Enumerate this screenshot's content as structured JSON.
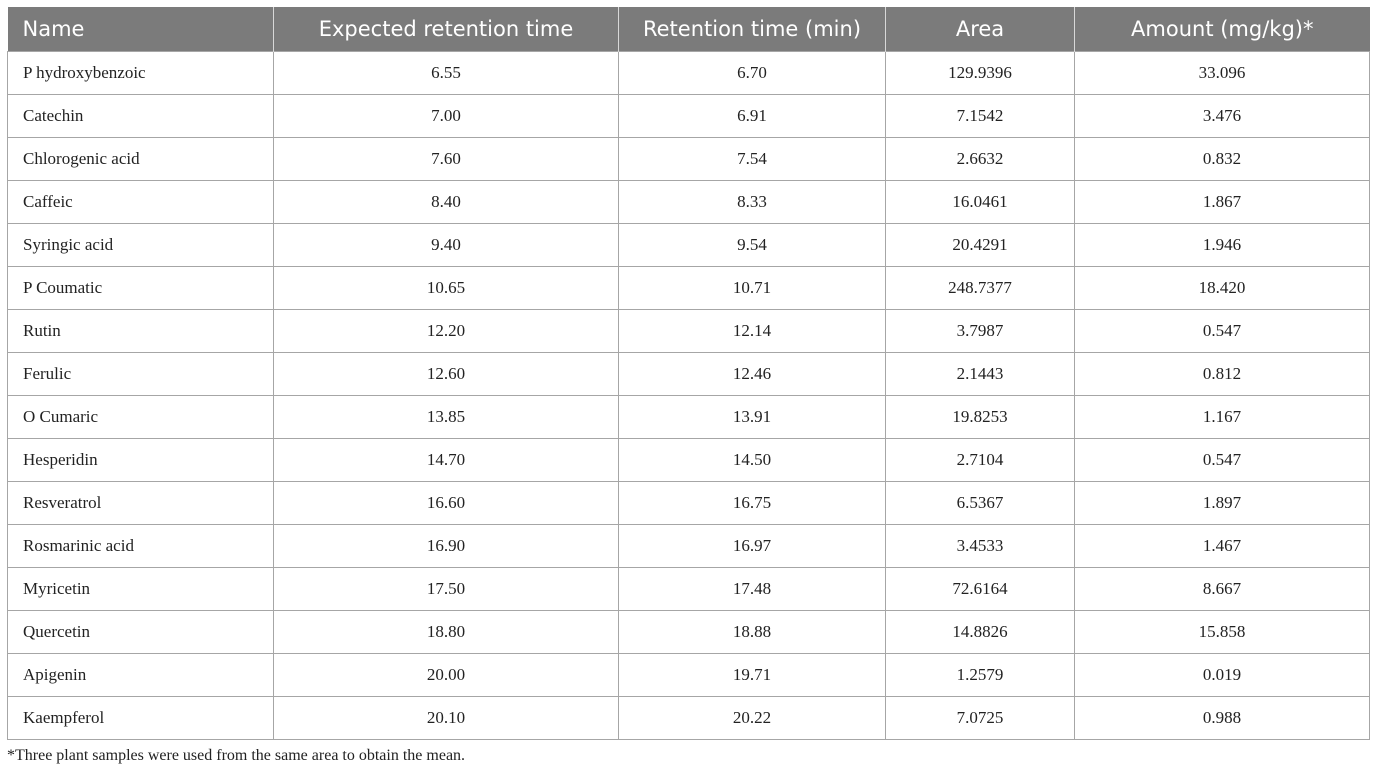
{
  "table": {
    "headers": [
      "Name",
      "Expected retention time",
      "Retention time (min)",
      "Area",
      "Amount (mg/kg)*"
    ],
    "rows": [
      [
        "P hydroxybenzoic",
        "6.55",
        "6.70",
        "129.9396",
        "33.096"
      ],
      [
        "Catechin",
        "7.00",
        "6.91",
        "7.1542",
        "3.476"
      ],
      [
        "Chlorogenic acid",
        "7.60",
        "7.54",
        "2.6632",
        "0.832"
      ],
      [
        "Caffeic",
        "8.40",
        "8.33",
        "16.0461",
        "1.867"
      ],
      [
        "Syringic acid",
        "9.40",
        "9.54",
        "20.4291",
        "1.946"
      ],
      [
        "P Coumatic",
        "10.65",
        "10.71",
        "248.7377",
        "18.420"
      ],
      [
        "Rutin",
        "12.20",
        "12.14",
        "3.7987",
        "0.547"
      ],
      [
        "Ferulic",
        "12.60",
        "12.46",
        "2.1443",
        "0.812"
      ],
      [
        "O Cumaric",
        "13.85",
        "13.91",
        "19.8253",
        "1.167"
      ],
      [
        "Hesperidin",
        "14.70",
        "14.50",
        "2.7104",
        "0.547"
      ],
      [
        "Resveratrol",
        "16.60",
        "16.75",
        "6.5367",
        "1.897"
      ],
      [
        "Rosmarinic acid",
        "16.90",
        "16.97",
        "3.4533",
        "1.467"
      ],
      [
        "Myricetin",
        "17.50",
        "17.48",
        "72.6164",
        "8.667"
      ],
      [
        "Quercetin",
        "18.80",
        "18.88",
        "14.8826",
        "15.858"
      ],
      [
        "Apigenin",
        "20.00",
        "19.71",
        "1.2579",
        "0.019"
      ],
      [
        "Kaempferol",
        "20.10",
        "20.22",
        "7.0725",
        "0.988"
      ]
    ]
  },
  "footnote": "*Three plant samples were used from the same area to obtain the mean.",
  "colors": {
    "header_bg": "#7b7b7b",
    "header_text": "#ffffff",
    "border": "#a6a6a6"
  }
}
